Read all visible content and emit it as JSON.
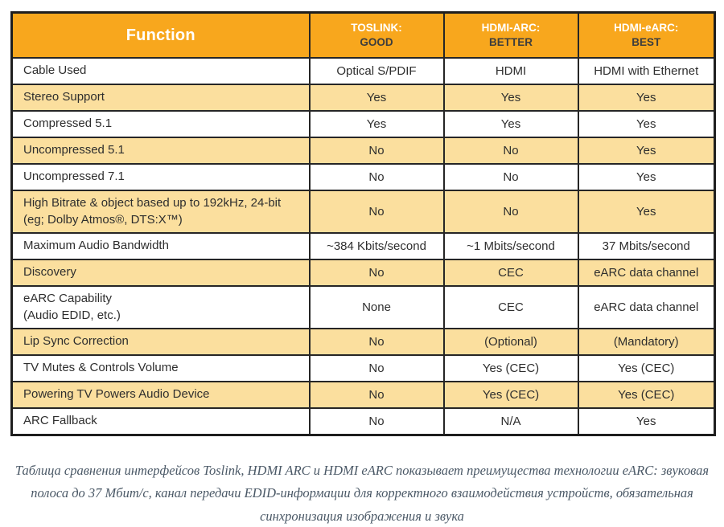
{
  "colors": {
    "header_orange": "#F8A71D",
    "row_yellow": "#FBDF9E",
    "row_white": "#FFFFFF",
    "border": "#262626",
    "header_text": "#FFFFFF",
    "rating_text": "#3D3D3D",
    "cell_text": "#2E2E2E",
    "caption_text": "#4A5866"
  },
  "table": {
    "function_header": "Function",
    "columns": [
      {
        "label": "TOSLINK:",
        "rating": "GOOD"
      },
      {
        "label": "HDMI-ARC:",
        "rating": "BETTER"
      },
      {
        "label": "HDMI-eARC:",
        "rating": "BEST"
      }
    ],
    "rows": [
      {
        "function": "Cable Used",
        "values": [
          "Optical S/PDIF",
          "HDMI",
          "HDMI with Ethernet"
        ],
        "shaded": false,
        "tall": false
      },
      {
        "function": "Stereo Support",
        "values": [
          "Yes",
          "Yes",
          "Yes"
        ],
        "shaded": true,
        "tall": false
      },
      {
        "function": "Compressed 5.1",
        "values": [
          "Yes",
          "Yes",
          "Yes"
        ],
        "shaded": false,
        "tall": false
      },
      {
        "function": "Uncompressed 5.1",
        "values": [
          "No",
          "No",
          "Yes"
        ],
        "shaded": true,
        "tall": false
      },
      {
        "function": "Uncompressed 7.1",
        "values": [
          "No",
          "No",
          "Yes"
        ],
        "shaded": false,
        "tall": false
      },
      {
        "function": "High Bitrate & object based up to 192kHz, 24-bit\n(eg; Dolby Atmos®, DTS:X™)",
        "values": [
          "No",
          "No",
          "Yes"
        ],
        "shaded": true,
        "tall": true
      },
      {
        "function": "Maximum Audio Bandwidth",
        "values": [
          "~384 Kbits/second",
          "~1 Mbits/second",
          "37 Mbits/second"
        ],
        "shaded": false,
        "tall": false
      },
      {
        "function": "Discovery",
        "values": [
          "No",
          "CEC",
          "eARC data channel"
        ],
        "shaded": true,
        "tall": false
      },
      {
        "function": "eARC Capability\n(Audio EDID, etc.)",
        "values": [
          "None",
          "CEC",
          "eARC data channel"
        ],
        "shaded": false,
        "tall": true
      },
      {
        "function": "Lip Sync Correction",
        "values": [
          "No",
          "(Optional)",
          "(Mandatory)"
        ],
        "shaded": true,
        "tall": false
      },
      {
        "function": "TV Mutes & Controls Volume",
        "values": [
          "No",
          "Yes (CEC)",
          "Yes (CEC)"
        ],
        "shaded": false,
        "tall": false
      },
      {
        "function": "Powering TV Powers Audio Device",
        "values": [
          "No",
          "Yes (CEC)",
          "Yes (CEC)"
        ],
        "shaded": true,
        "tall": false
      },
      {
        "function": "ARC Fallback",
        "values": [
          "No",
          "N/A",
          "Yes"
        ],
        "shaded": false,
        "tall": false
      }
    ]
  },
  "caption": {
    "text": "Таблица сравнения интерфейсов Toslink, HDMI ARC и HDMI eARC показывает преимущества технологии eARC: звуковая полоса до 37 Мбит/с, канал передачи EDID-информации для корректного взаимодействия устройств, обязательная синхронизация изображения и звука"
  }
}
